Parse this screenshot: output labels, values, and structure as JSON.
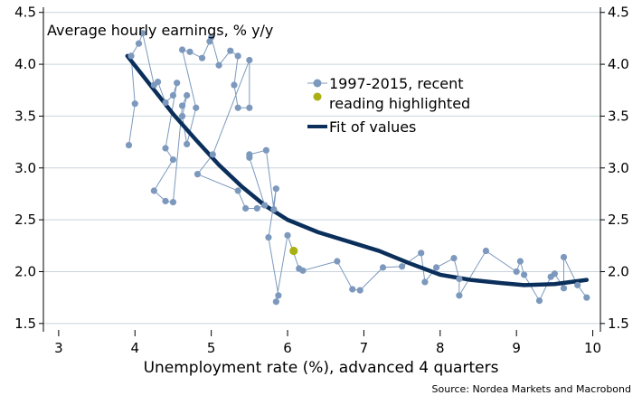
{
  "chart_data": {
    "type": "scatter",
    "annotation": "Average hourly earnings, % y/y",
    "xlabel": "Unemployment rate (%), advanced 4 quarters",
    "ylabel": "",
    "xlim": [
      2.8,
      10.1
    ],
    "ylim": [
      1.42,
      4.55
    ],
    "x_ticks": [
      3,
      4,
      5,
      6,
      7,
      8,
      9,
      10
    ],
    "y_ticks": [
      1.5,
      2.0,
      2.5,
      3.0,
      3.5,
      4.0,
      4.5
    ],
    "y_tick_labels": [
      "1.5",
      "2.0",
      "2.5",
      "3.0",
      "3.5",
      "4.0",
      "4.5"
    ],
    "grid": "horizontal",
    "legend_position": "center-right",
    "source": "Source: Nordea Markets and Macrobond",
    "colors": {
      "series": "#7c99bd",
      "highlight": "#a8b013",
      "fit": "#0a2f5b",
      "grid": "#c8d4dc"
    },
    "series": [
      {
        "name": "1997-2015, recent reading highlighted",
        "points": [
          [
            3.92,
            3.22
          ],
          [
            4.0,
            3.62
          ],
          [
            3.95,
            4.08
          ],
          [
            4.05,
            4.2
          ],
          [
            4.1,
            4.3
          ],
          [
            4.25,
            3.8
          ],
          [
            4.3,
            3.83
          ],
          [
            4.4,
            3.63
          ],
          [
            4.5,
            3.7
          ],
          [
            4.55,
            3.82
          ],
          [
            4.4,
            3.19
          ],
          [
            4.5,
            3.08
          ],
          [
            4.25,
            2.78
          ],
          [
            4.4,
            2.68
          ],
          [
            4.5,
            2.67
          ],
          [
            4.62,
            3.6
          ],
          [
            4.68,
            3.7
          ],
          [
            4.62,
            3.5
          ],
          [
            4.68,
            3.23
          ],
          [
            4.8,
            3.58
          ],
          [
            4.62,
            4.14
          ],
          [
            4.72,
            4.12
          ],
          [
            4.88,
            4.06
          ],
          [
            4.98,
            4.22
          ],
          [
            5.0,
            4.26
          ],
          [
            5.1,
            3.99
          ],
          [
            5.25,
            4.13
          ],
          [
            5.35,
            4.08
          ],
          [
            5.3,
            3.8
          ],
          [
            5.35,
            3.58
          ],
          [
            5.5,
            3.58
          ],
          [
            5.5,
            4.04
          ],
          [
            5.02,
            3.13
          ],
          [
            4.82,
            2.94
          ],
          [
            5.35,
            2.78
          ],
          [
            5.45,
            2.61
          ],
          [
            5.6,
            2.61
          ],
          [
            5.7,
            2.64
          ],
          [
            5.5,
            3.1
          ],
          [
            5.5,
            3.13
          ],
          [
            5.72,
            3.17
          ],
          [
            5.82,
            2.6
          ],
          [
            5.85,
            2.8
          ],
          [
            5.75,
            2.33
          ],
          [
            5.88,
            1.77
          ],
          [
            5.85,
            1.71
          ],
          [
            6.0,
            2.35
          ],
          [
            6.15,
            2.03
          ],
          [
            6.2,
            2.01
          ],
          [
            6.65,
            2.1
          ],
          [
            6.85,
            1.83
          ],
          [
            6.95,
            1.82
          ],
          [
            7.25,
            2.04
          ],
          [
            7.5,
            2.05
          ],
          [
            7.75,
            2.18
          ],
          [
            7.8,
            1.9
          ],
          [
            7.95,
            2.04
          ],
          [
            8.18,
            2.13
          ],
          [
            8.25,
            1.93
          ],
          [
            8.25,
            1.77
          ],
          [
            8.6,
            2.2
          ],
          [
            9.0,
            2.0
          ],
          [
            9.05,
            2.1
          ],
          [
            9.1,
            1.97
          ],
          [
            9.3,
            1.72
          ],
          [
            9.45,
            1.95
          ],
          [
            9.5,
            1.98
          ],
          [
            9.62,
            1.84
          ],
          [
            9.62,
            2.14
          ],
          [
            9.8,
            1.87
          ],
          [
            9.92,
            1.75
          ]
        ]
      },
      {
        "name": "recent reading",
        "points": [
          [
            6.08,
            2.2
          ]
        ]
      },
      {
        "name": "Fit of values",
        "points": [
          [
            3.9,
            4.08
          ],
          [
            4.2,
            3.8
          ],
          [
            4.5,
            3.52
          ],
          [
            4.8,
            3.27
          ],
          [
            5.1,
            3.03
          ],
          [
            5.4,
            2.82
          ],
          [
            5.7,
            2.64
          ],
          [
            6.0,
            2.5
          ],
          [
            6.4,
            2.38
          ],
          [
            6.8,
            2.29
          ],
          [
            7.2,
            2.2
          ],
          [
            7.6,
            2.08
          ],
          [
            8.0,
            1.97
          ],
          [
            8.4,
            1.92
          ],
          [
            8.8,
            1.89
          ],
          [
            9.1,
            1.87
          ],
          [
            9.5,
            1.88
          ],
          [
            9.92,
            1.92
          ]
        ]
      }
    ],
    "legend": [
      {
        "line1": "1997-2015, recent",
        "line2": "reading highlighted"
      },
      {
        "label": "Fit of values"
      }
    ]
  }
}
